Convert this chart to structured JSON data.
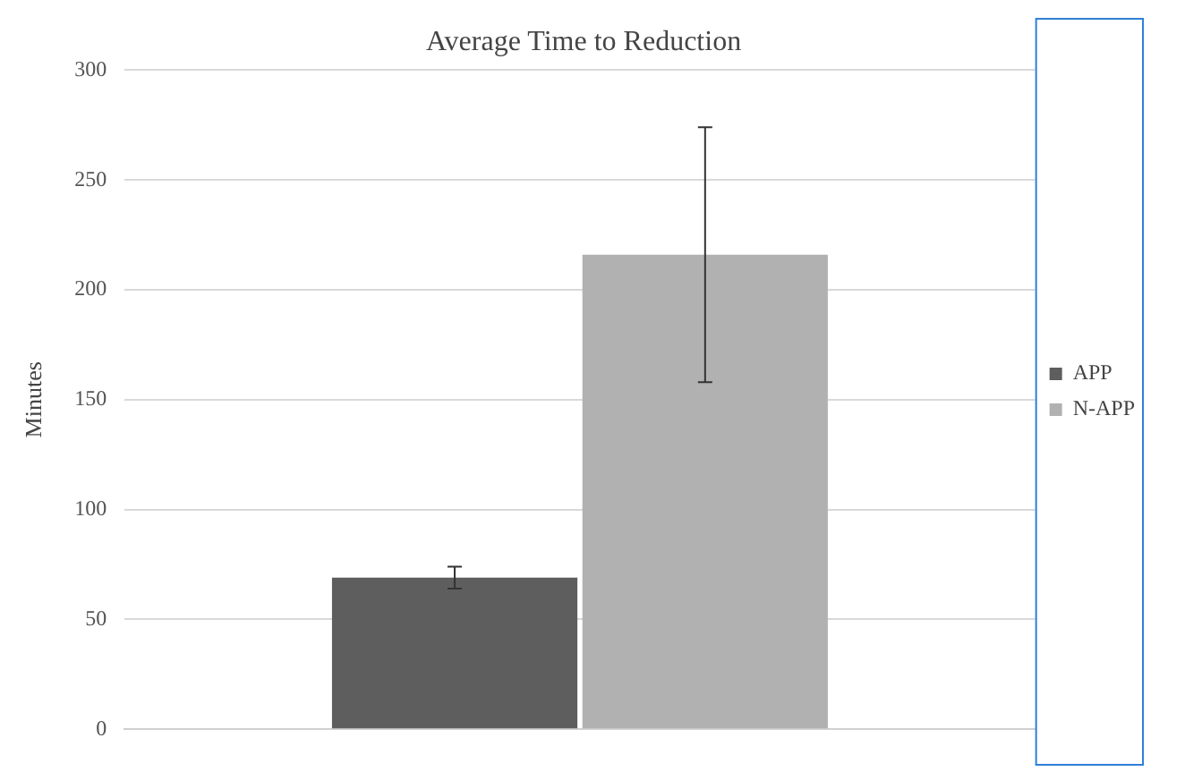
{
  "chart_data": {
    "type": "bar",
    "title": "Average Time to Reduction",
    "ylabel": "Minutes",
    "categories": [
      null
    ],
    "series": [
      {
        "name": "APP",
        "color": "#5e5e5e",
        "values": [
          69
        ],
        "errors": [
          5
        ]
      },
      {
        "name": "N-APP",
        "color": "#b1b1b1",
        "values": [
          216
        ],
        "errors": [
          58
        ]
      }
    ],
    "ylim": [
      0,
      300
    ],
    "yticks": [
      0,
      50,
      100,
      150,
      200,
      250,
      300
    ],
    "grid": "y",
    "legend": "right"
  }
}
